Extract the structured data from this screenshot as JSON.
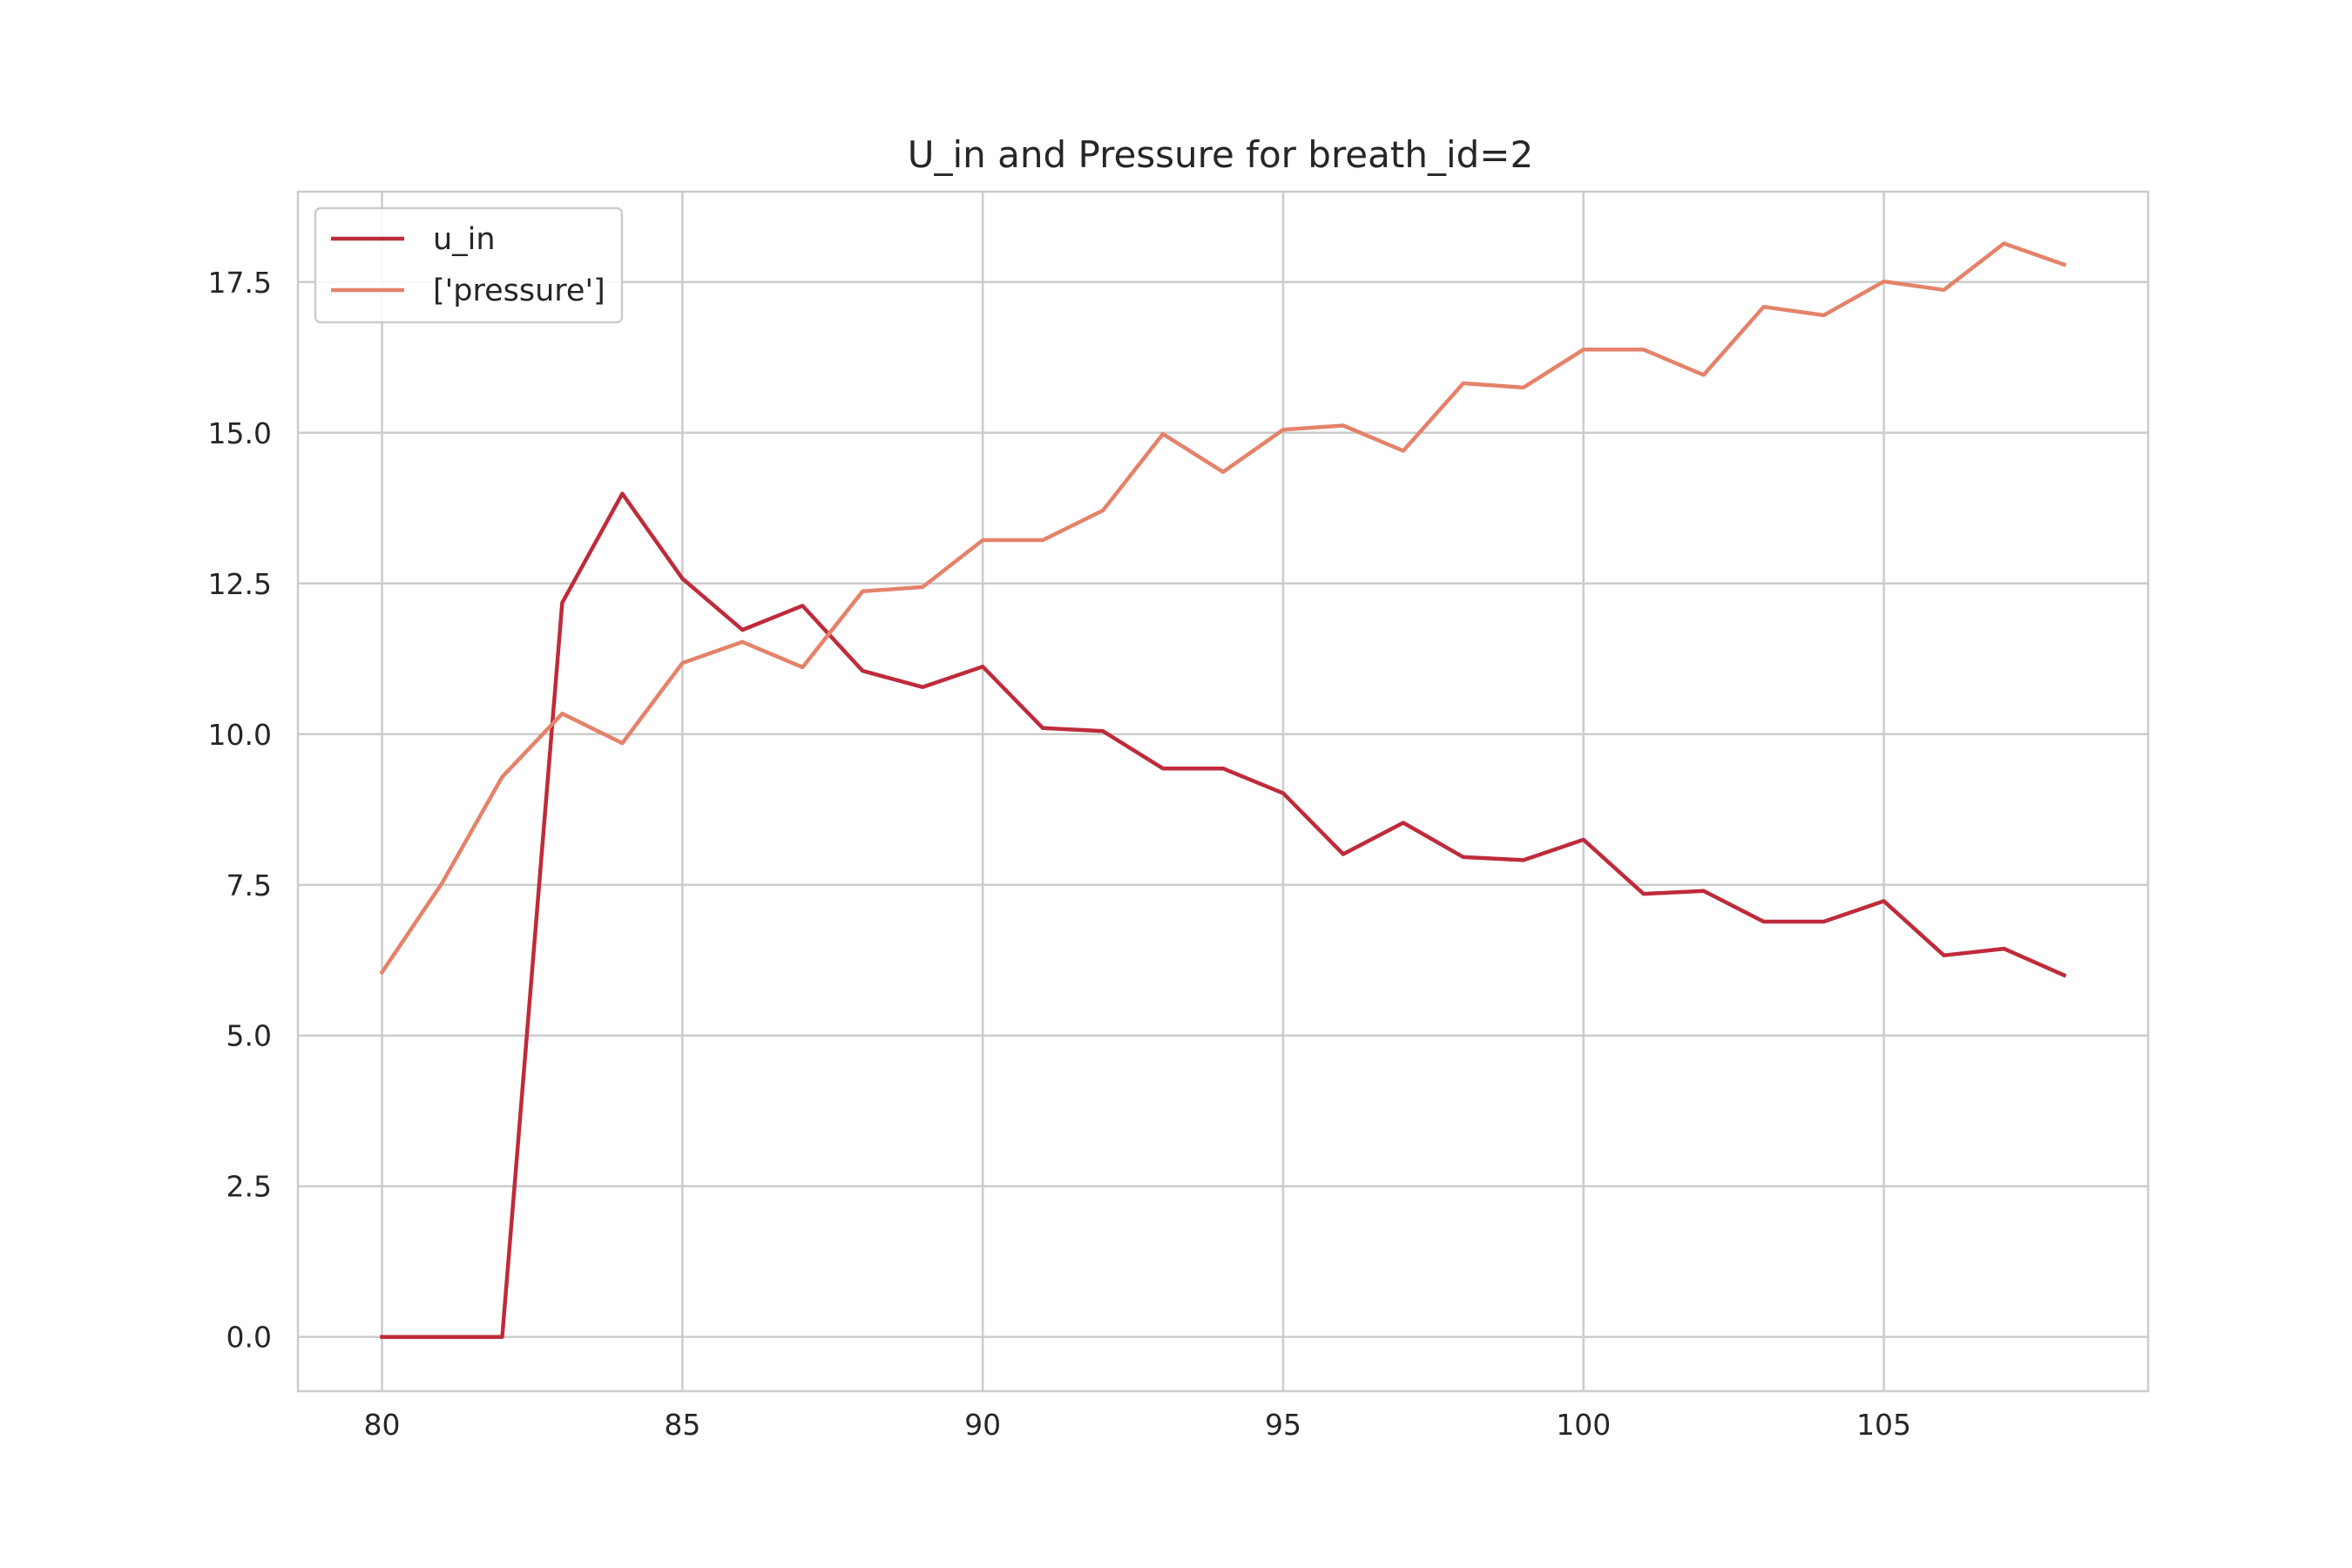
{
  "chart_data": {
    "type": "line",
    "title": "U_in and Pressure for breath_id=2",
    "xlabel": "",
    "ylabel": "",
    "xlim": [
      78.6,
      109.4
    ],
    "ylim": [
      -0.9,
      19.0
    ],
    "xticks": [
      80,
      85,
      90,
      95,
      100,
      105
    ],
    "yticks": [
      0.0,
      2.5,
      5.0,
      7.5,
      10.0,
      12.5,
      15.0,
      17.5
    ],
    "ytick_labels": [
      "0.0",
      "2.5",
      "5.0",
      "7.5",
      "10.0",
      "12.5",
      "15.0",
      "17.5"
    ],
    "grid": true,
    "legend_position": "top-left",
    "x": [
      80,
      81,
      82,
      83,
      84,
      85,
      86,
      87,
      88,
      89,
      90,
      91,
      92,
      93,
      94,
      95,
      96,
      97,
      98,
      99,
      100,
      101,
      102,
      103,
      104,
      105,
      106,
      107,
      108
    ],
    "series": [
      {
        "name": "u_in",
        "color": "#bf2b3b",
        "values": [
          0.0,
          0.0,
          0.0,
          12.18,
          13.99,
          12.58,
          11.73,
          12.13,
          11.05,
          10.78,
          11.12,
          10.1,
          10.05,
          9.43,
          9.43,
          9.02,
          8.01,
          8.53,
          7.96,
          7.91,
          8.25,
          7.35,
          7.4,
          6.89,
          6.89,
          7.23,
          6.33,
          6.44,
          6.0
        ]
      },
      {
        "name": "['pressure']",
        "color": "#e5826a",
        "values": [
          6.05,
          7.53,
          9.29,
          10.34,
          9.85,
          11.18,
          11.53,
          11.11,
          12.37,
          12.44,
          13.22,
          13.22,
          13.71,
          14.98,
          14.35,
          15.05,
          15.12,
          14.7,
          15.82,
          15.75,
          16.38,
          16.38,
          15.96,
          17.09,
          16.95,
          17.51,
          17.37,
          18.14,
          17.79
        ]
      }
    ]
  }
}
